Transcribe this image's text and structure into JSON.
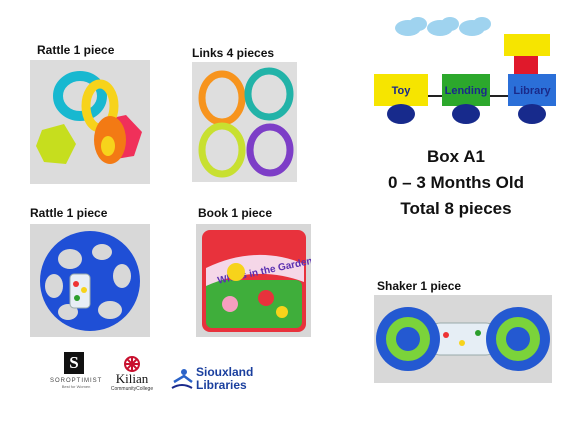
{
  "items": [
    {
      "label": "Rattle 1 piece"
    },
    {
      "label": "Links 4 pieces"
    },
    {
      "label": "Rattle 1 piece"
    },
    {
      "label": "Book 1 piece"
    },
    {
      "label": "Shaker 1 piece"
    }
  ],
  "train": {
    "cars": [
      "Toy",
      "Lending",
      "Library"
    ]
  },
  "box": {
    "title": "Box A1",
    "age": "0 – 3 Months Old",
    "total": "Total 8 pieces"
  },
  "book_cover": {
    "title": "Who's in the Garden?"
  },
  "logos": {
    "soroptimist": {
      "initial": "S",
      "name": "SOROPTIMIST",
      "tagline": "Best for Women"
    },
    "killian": {
      "name": "Kilian",
      "sub": "CommunityCollege"
    },
    "siouxland": {
      "line1": "Siouxland",
      "line2": "Libraries"
    }
  },
  "colors": {
    "sky": "#9fd3ef",
    "yellow": "#f6e500",
    "green": "#2ca82c",
    "blue": "#2b6fd8",
    "red": "#e0192b",
    "wheel": "#172a8c"
  }
}
